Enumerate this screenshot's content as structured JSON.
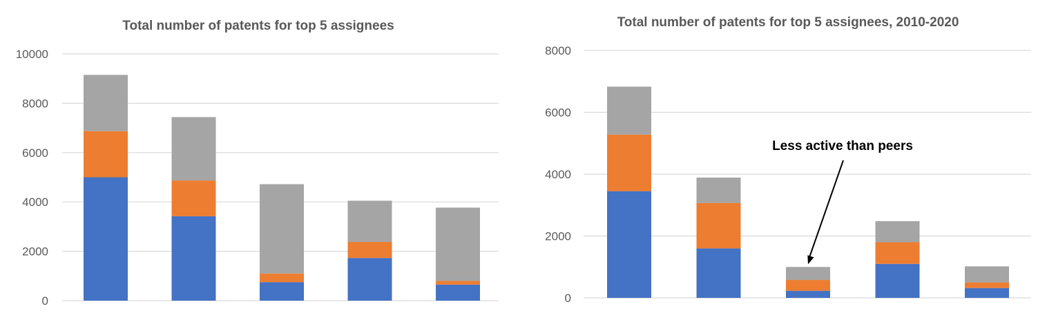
{
  "colors": {
    "series_1": "#4472c4",
    "series_2": "#ed7d31",
    "series_3": "#a5a5a5",
    "grid": "#d9d9d9",
    "text": "#595959"
  },
  "chart_data": [
    {
      "type": "bar",
      "stacked": true,
      "title": "Total number of patents for top 5 assignees",
      "xlabel": "",
      "ylabel": "",
      "categories": [
        "",
        "",
        "",
        "",
        ""
      ],
      "ylim": [
        0,
        10000
      ],
      "yticks": [
        "0",
        "2000",
        "4000",
        "6000",
        "8000",
        "10000"
      ],
      "grid": true,
      "legend": "none",
      "series": [
        {
          "values": [
            5000,
            3420,
            750,
            1730,
            650
          ]
        },
        {
          "values": [
            1870,
            1450,
            350,
            650,
            150
          ]
        },
        {
          "values": [
            2280,
            2570,
            3620,
            1670,
            2970
          ]
        }
      ]
    },
    {
      "type": "bar",
      "stacked": true,
      "title": "Total number of patents for top 5 assignees, 2010-2020",
      "xlabel": "",
      "ylabel": "",
      "categories": [
        "",
        "",
        "",
        "",
        ""
      ],
      "ylim": [
        0,
        8000
      ],
      "yticks": [
        "0",
        "2000",
        "4000",
        "6000",
        "8000"
      ],
      "grid": true,
      "legend": "none",
      "series": [
        {
          "values": [
            3450,
            1600,
            230,
            1100,
            320
          ]
        },
        {
          "values": [
            1830,
            1470,
            350,
            700,
            180
          ]
        },
        {
          "values": [
            1550,
            820,
            420,
            680,
            520
          ]
        }
      ],
      "annotation": {
        "text": "Less active than peers",
        "category_index": 2
      }
    }
  ]
}
